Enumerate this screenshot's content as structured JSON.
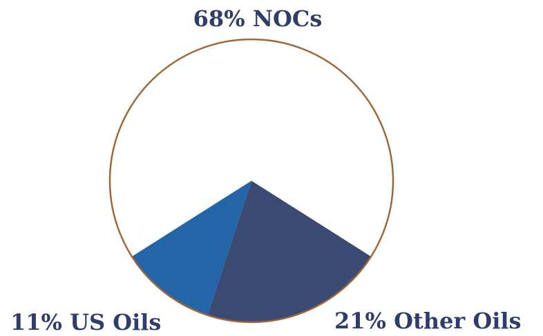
{
  "chart_data": {
    "type": "pie",
    "slices": [
      {
        "name": "NOCs",
        "value": 68,
        "label": "68% NOCs",
        "color": "#ffffff"
      },
      {
        "name": "Other Oils",
        "value": 21,
        "label": "21% Other Oils",
        "color": "#3b4a73"
      },
      {
        "name": "US Oils",
        "value": 11,
        "label": "11% US Oils",
        "color": "#2465a8"
      }
    ],
    "outline_color": "#a0673a",
    "label_color": "#2f3d6b",
    "legend": "none"
  }
}
